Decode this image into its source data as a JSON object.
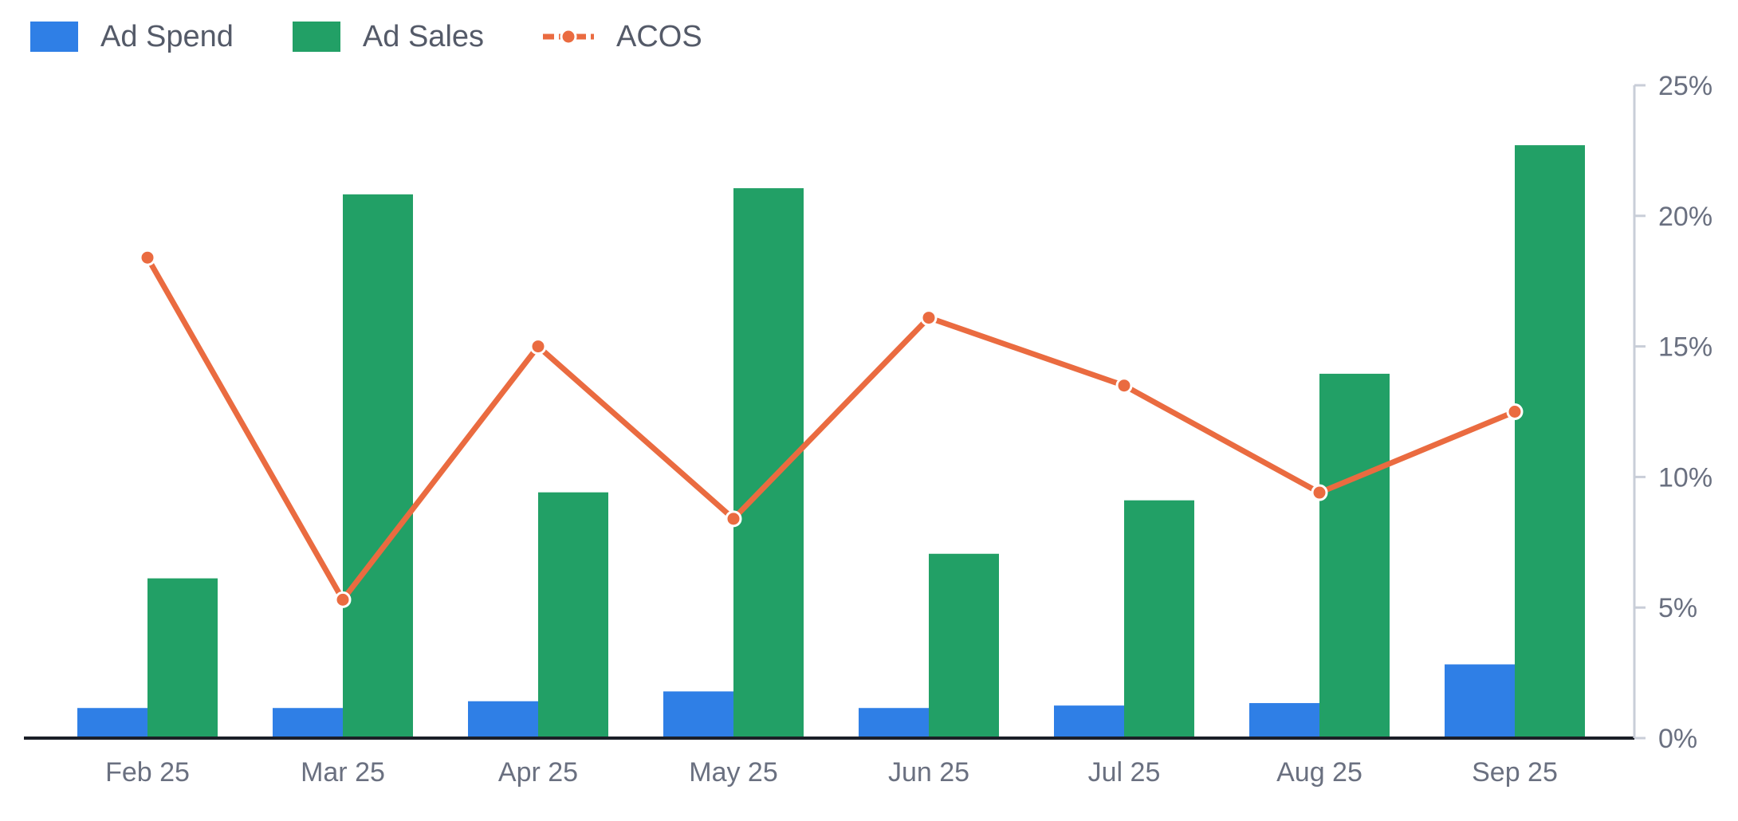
{
  "chart_data": {
    "type": "bar",
    "categories": [
      "Feb 25",
      "Mar 25",
      "Apr 25",
      "May 25",
      "Jun 25",
      "Jul 25",
      "Aug 25",
      "Sep 25"
    ],
    "series": [
      {
        "name": "Ad Spend",
        "kind": "bar",
        "axis": "left",
        "color": "#2f7fe6",
        "values": [
          490,
          490,
          600,
          760,
          490,
          530,
          570,
          1200
        ]
      },
      {
        "name": "Ad Sales",
        "kind": "bar",
        "axis": "left",
        "color": "#22a066",
        "values": [
          2600,
          8850,
          4000,
          8950,
          3000,
          3870,
          5930,
          9650
        ]
      },
      {
        "name": "ACOS",
        "kind": "line",
        "axis": "right",
        "color": "#ea6b40",
        "values": [
          18.4,
          5.3,
          15.0,
          8.4,
          16.1,
          13.5,
          9.4,
          12.5
        ]
      }
    ],
    "y_left_range": [
      0,
      10625
    ],
    "y_left_ticks_shown": false,
    "y_right_ticks": [
      "0%",
      "5%",
      "10%",
      "15%",
      "20%",
      "25%"
    ],
    "y_right_range": [
      0,
      25
    ],
    "grid": false,
    "legend_position": "top-left",
    "title": "",
    "xlabel": "",
    "ylabel": ""
  }
}
